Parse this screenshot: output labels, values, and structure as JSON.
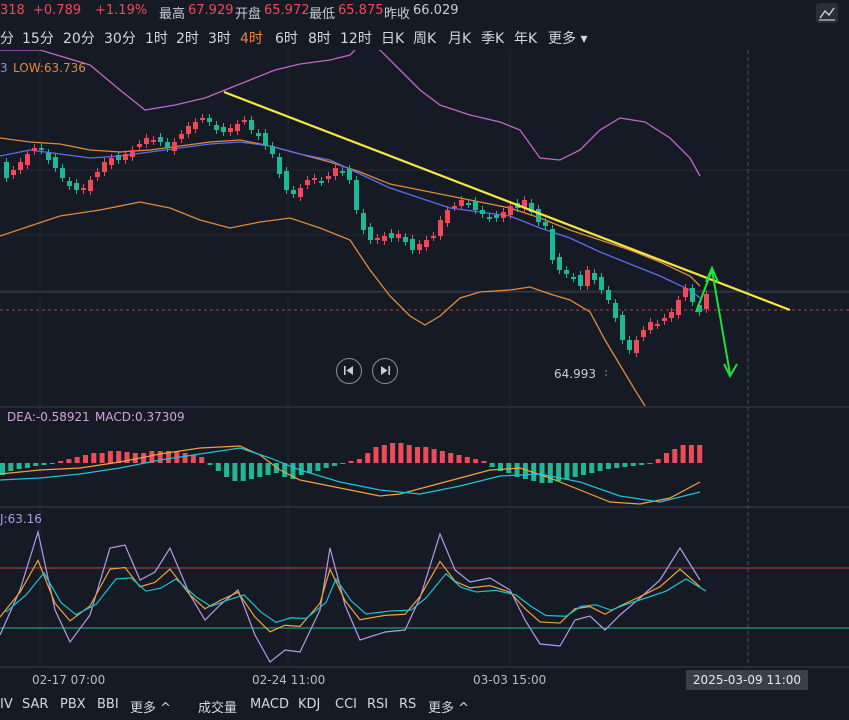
{
  "quote": {
    "last_partial": "318",
    "change": "+0.789",
    "change_pct": "+1.19%",
    "high_label": "最高",
    "high": "67.929",
    "open_label": "开盘",
    "open": "65.972",
    "low_label": "最低",
    "low": "65.875",
    "prev_close_label": "昨收",
    "prev_close": "66.029"
  },
  "periods": [
    "分",
    "15分",
    "20分",
    "30分",
    "1时",
    "2时",
    "3时",
    "4时",
    "6时",
    "8时",
    "12时",
    "日K",
    "周K",
    "月K",
    "季K",
    "年K",
    "更多"
  ],
  "active_period": "4时",
  "main_legend": {
    "partial": "3",
    "low": "LOW:63.736"
  },
  "macd_legend": {
    "dea": "DEA:-0.58921",
    "macd": "MACD:0.37309"
  },
  "kdj_legend": {
    "j": "J:63.16"
  },
  "annotations": {
    "low_price": "64.993"
  },
  "x_axis": {
    "ticks": [
      "02-17 07:00",
      "02-24 11:00",
      "03-03 15:00"
    ],
    "crosshair_label": "2025-03-09 11:00"
  },
  "indicators_left": [
    "IV",
    "SAR",
    "PBX",
    "BBI",
    "更多"
  ],
  "indicators_right": [
    "成交量",
    "MACD",
    "KDJ",
    "CCI",
    "RSI",
    "RS",
    "更多"
  ],
  "colors": {
    "up": "#ef4a5a",
    "down": "#1fb894",
    "trendline": "#f5e642",
    "projection": "#22e03a",
    "boll_upper": "#c467c9",
    "boll_mid": "#e08b3c",
    "ma": "#5b6cf0",
    "dea": "#f0a23c",
    "dif": "#1ec3d6",
    "k_line": "#f0a23c",
    "d_line": "#1ec3d6",
    "j_line": "#b59be6",
    "active_tab": "#ff7d3b"
  },
  "chart_data": {
    "type": "candlestick",
    "price_annotation": 64.993,
    "overbought_line": 80,
    "oversold_line": 20
  }
}
